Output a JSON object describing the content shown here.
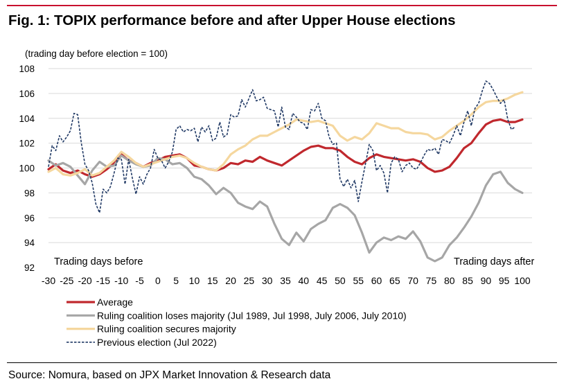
{
  "title": "Fig. 1: TOPIX performance before and after Upper House elections",
  "source": "Source: Nomura, based on JPX Market Innovation & Research data",
  "chart_data": {
    "type": "line",
    "title": "Fig. 1: TOPIX performance before and after Upper House elections",
    "ylabel": "(trading day before election = 100)",
    "xlabel": "",
    "xlim": [
      -30,
      100
    ],
    "ylim": [
      92,
      108
    ],
    "x_ticks": [
      -30,
      -25,
      -20,
      -15,
      -10,
      -5,
      0,
      5,
      10,
      15,
      20,
      25,
      30,
      35,
      40,
      45,
      50,
      55,
      60,
      65,
      70,
      75,
      80,
      85,
      90,
      95,
      100
    ],
    "y_ticks": [
      92,
      94,
      96,
      98,
      100,
      102,
      104,
      106,
      108
    ],
    "grid": "horizontal",
    "legend_position": "bottom-left",
    "annotations": [
      "Trading days before",
      "Trading days after"
    ],
    "series": [
      {
        "name": "Average",
        "color": "#c0282d",
        "style": "solid",
        "x": [
          -30,
          -28,
          -26,
          -24,
          -22,
          -20,
          -18,
          -16,
          -14,
          -12,
          -10,
          -8,
          -6,
          -4,
          -2,
          0,
          2,
          4,
          6,
          8,
          10,
          12,
          14,
          16,
          18,
          20,
          22,
          24,
          26,
          28,
          30,
          32,
          34,
          36,
          38,
          40,
          42,
          44,
          46,
          48,
          50,
          52,
          54,
          56,
          58,
          60,
          62,
          64,
          66,
          68,
          70,
          72,
          74,
          76,
          78,
          80,
          82,
          84,
          86,
          88,
          90,
          92,
          94,
          96,
          98,
          100
        ],
        "y": [
          99.9,
          100.3,
          99.8,
          99.6,
          99.8,
          99.5,
          99.3,
          99.5,
          99.9,
          100.4,
          101.1,
          100.6,
          100.4,
          100.1,
          100.4,
          100.6,
          100.9,
          101.0,
          101.1,
          100.8,
          100.2,
          100.1,
          99.9,
          99.8,
          100.0,
          100.4,
          100.3,
          100.6,
          100.5,
          100.9,
          100.6,
          100.4,
          100.2,
          100.6,
          101.0,
          101.4,
          101.7,
          101.8,
          101.6,
          101.6,
          101.4,
          100.9,
          100.5,
          100.3,
          100.8,
          101.1,
          100.9,
          100.8,
          100.7,
          100.6,
          100.7,
          100.5,
          100.0,
          99.7,
          99.8,
          100.1,
          100.8,
          101.6,
          102.0,
          102.8,
          103.5,
          103.8,
          103.9,
          103.7,
          103.7,
          103.9
        ]
      },
      {
        "name": "Ruling coalition loses majority (Jul 1989, Jul 1998, July 2006, July 2010)",
        "color": "#a6a6a6",
        "style": "solid",
        "x": [
          -30,
          -28,
          -26,
          -24,
          -22,
          -20,
          -18,
          -16,
          -14,
          -12,
          -10,
          -8,
          -6,
          -4,
          -2,
          0,
          2,
          4,
          6,
          8,
          10,
          12,
          14,
          16,
          18,
          20,
          22,
          24,
          26,
          28,
          30,
          32,
          34,
          36,
          38,
          40,
          42,
          44,
          46,
          48,
          50,
          52,
          54,
          56,
          58,
          60,
          62,
          64,
          66,
          68,
          70,
          72,
          74,
          76,
          78,
          80,
          82,
          84,
          86,
          88,
          90,
          92,
          94,
          96,
          98,
          100
        ],
        "y": [
          100.6,
          100.2,
          100.4,
          100.1,
          99.4,
          98.7,
          99.8,
          100.5,
          100.1,
          100.2,
          101.0,
          100.6,
          100.3,
          100.1,
          100.2,
          100.8,
          100.7,
          100.3,
          100.4,
          100.0,
          99.3,
          99.1,
          98.6,
          97.9,
          98.4,
          98.0,
          97.2,
          96.9,
          96.7,
          97.3,
          96.9,
          95.5,
          94.3,
          93.8,
          94.8,
          94.1,
          95.1,
          95.5,
          95.8,
          96.8,
          97.1,
          96.8,
          96.2,
          94.8,
          93.2,
          94.0,
          94.4,
          94.2,
          94.5,
          94.3,
          94.9,
          94.1,
          92.8,
          92.5,
          92.8,
          93.8,
          94.4,
          95.2,
          96.1,
          97.2,
          98.6,
          99.5,
          99.7,
          98.8,
          98.3,
          98.0
        ]
      },
      {
        "name": "Ruling coalition secures majority",
        "color": "#f5d79e",
        "style": "solid",
        "x": [
          -30,
          -28,
          -26,
          -24,
          -22,
          -20,
          -18,
          -16,
          -14,
          -12,
          -10,
          -8,
          -6,
          -4,
          -2,
          0,
          2,
          4,
          6,
          8,
          10,
          12,
          14,
          16,
          18,
          20,
          22,
          24,
          26,
          28,
          30,
          32,
          34,
          36,
          38,
          40,
          42,
          44,
          46,
          48,
          50,
          52,
          54,
          56,
          58,
          60,
          62,
          64,
          66,
          68,
          70,
          72,
          74,
          76,
          78,
          80,
          82,
          84,
          86,
          88,
          90,
          92,
          94,
          96,
          98,
          100
        ],
        "y": [
          99.7,
          100.0,
          99.5,
          99.4,
          99.6,
          99.9,
          99.4,
          99.6,
          100.1,
          100.6,
          101.3,
          100.9,
          100.4,
          100.1,
          100.3,
          100.5,
          100.7,
          100.9,
          101.0,
          100.8,
          100.4,
          100.1,
          99.9,
          99.8,
          100.3,
          101.1,
          101.5,
          101.8,
          102.3,
          102.6,
          102.6,
          102.9,
          103.2,
          103.5,
          103.9,
          103.8,
          103.7,
          103.8,
          103.6,
          103.4,
          102.6,
          102.2,
          102.5,
          102.3,
          102.8,
          103.6,
          103.4,
          103.2,
          103.2,
          102.9,
          102.8,
          102.8,
          102.7,
          102.3,
          102.5,
          103.0,
          103.4,
          103.8,
          104.3,
          104.9,
          105.3,
          105.4,
          105.4,
          105.6,
          105.9,
          106.1
        ]
      },
      {
        "name": "Previous election (Jul 2022)",
        "color": "#1f3864",
        "style": "dashed",
        "x": [
          -30,
          -29,
          -28,
          -27,
          -26,
          -25,
          -24,
          -23,
          -22,
          -21,
          -20,
          -19,
          -18,
          -17,
          -16,
          -15,
          -14,
          -13,
          -12,
          -11,
          -10,
          -9,
          -8,
          -7,
          -6,
          -5,
          -4,
          -3,
          -2,
          -1,
          0,
          1,
          2,
          3,
          4,
          5,
          6,
          7,
          8,
          9,
          10,
          11,
          12,
          13,
          14,
          15,
          16,
          17,
          18,
          19,
          20,
          21,
          22,
          23,
          24,
          25,
          26,
          27,
          28,
          29,
          30,
          31,
          32,
          33,
          34,
          35,
          36,
          37,
          38,
          39,
          40,
          41,
          42,
          43,
          44,
          45,
          46,
          47,
          48,
          49,
          50,
          51,
          52,
          53,
          54,
          55,
          56,
          57,
          58,
          59,
          60,
          61,
          62,
          63,
          64,
          65,
          66,
          67,
          68,
          69,
          70,
          71,
          72,
          73,
          74,
          75,
          76,
          77,
          78,
          79,
          80,
          81,
          82,
          83,
          84,
          85,
          86,
          87,
          88,
          89,
          90,
          91,
          92,
          93,
          94,
          95,
          96,
          97,
          98
        ],
        "y": [
          100.1,
          101.8,
          101.4,
          102.6,
          102.1,
          102.5,
          103.0,
          104.4,
          104.3,
          102.0,
          100.3,
          99.8,
          98.8,
          97.1,
          96.4,
          98.3,
          98.0,
          98.5,
          99.6,
          100.8,
          100.7,
          98.7,
          100.7,
          99.2,
          97.9,
          99.3,
          98.7,
          99.5,
          100.0,
          101.5,
          100.8,
          100.6,
          100.0,
          100.5,
          101.3,
          103.1,
          103.4,
          102.9,
          103.1,
          103.0,
          103.2,
          102.1,
          103.3,
          102.9,
          103.4,
          102.2,
          102.4,
          103.7,
          102.5,
          102.7,
          104.3,
          104.1,
          104.2,
          105.5,
          104.9,
          105.6,
          106.3,
          105.4,
          105.5,
          105.7,
          104.8,
          104.7,
          104.6,
          103.3,
          104.9,
          103.3,
          103.1,
          104.4,
          104.1,
          103.7,
          103.6,
          103.1,
          104.7,
          104.6,
          105.2,
          104.0,
          103.8,
          102.5,
          101.9,
          102.0,
          99.1,
          98.5,
          99.1,
          98.4,
          99.0,
          97.3,
          98.9,
          100.4,
          101.9,
          101.4,
          99.8,
          100.2,
          99.6,
          98.0,
          100.4,
          100.9,
          100.7,
          99.7,
          100.2,
          100.4,
          100.0,
          99.9,
          100.4,
          101.0,
          101.5,
          101.4,
          101.6,
          101.1,
          102.3,
          102.2,
          102.0,
          102.6,
          103.4,
          102.6,
          103.7,
          104.6,
          103.4,
          104.8,
          105.2,
          106.2,
          107.0,
          106.8,
          106.3,
          105.7,
          105.2,
          105.5,
          103.9,
          103.1,
          103.3
        ]
      }
    ]
  }
}
